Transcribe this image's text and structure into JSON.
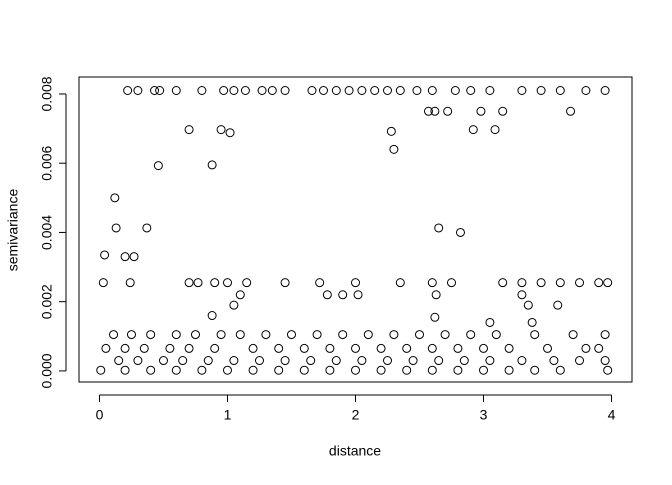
{
  "chart_data": {
    "type": "scatter",
    "x_label": "distance",
    "y_label": "semivariance",
    "x": [
      0.22,
      0.3,
      0.43,
      0.47,
      0.6,
      0.8,
      0.97,
      1.05,
      1.14,
      1.27,
      1.35,
      1.45,
      1.66,
      1.75,
      1.85,
      1.95,
      2.05,
      2.15,
      2.25,
      2.35,
      2.48,
      2.6,
      2.78,
      2.9,
      3.05,
      3.3,
      3.45,
      3.6,
      3.8,
      3.95,
      0.7,
      0.95,
      1.02,
      0.88,
      0.46,
      2.28,
      2.3,
      2.57,
      2.62,
      2.72,
      2.98,
      3.15,
      3.68,
      2.92,
      3.09,
      0.12,
      0.13,
      0.37,
      2.65,
      2.82,
      0.04,
      0.2,
      0.27,
      0.03,
      0.24,
      0.7,
      0.77,
      0.9,
      1.0,
      1.15,
      1.45,
      1.72,
      2.0,
      2.35,
      2.6,
      2.75,
      3.15,
      3.3,
      3.45,
      3.6,
      3.75,
      3.9,
      3.97,
      0.88,
      1.05,
      1.1,
      1.78,
      1.9,
      2.02,
      2.63,
      2.62,
      3.05,
      3.3,
      3.35,
      3.58,
      3.38,
      0.11,
      0.25,
      0.4,
      0.6,
      0.75,
      0.95,
      1.1,
      1.3,
      1.5,
      1.7,
      1.9,
      2.1,
      2.3,
      2.5,
      2.7,
      2.9,
      3.1,
      3.4,
      3.7,
      3.95,
      0.05,
      0.2,
      0.35,
      0.55,
      0.7,
      0.9,
      1.2,
      1.4,
      1.6,
      1.8,
      2.0,
      2.2,
      2.4,
      2.6,
      2.8,
      3.0,
      3.2,
      3.5,
      3.8,
      3.9,
      0.15,
      0.3,
      0.5,
      0.65,
      0.85,
      1.05,
      1.25,
      1.45,
      1.65,
      1.85,
      2.05,
      2.25,
      2.45,
      2.65,
      2.85,
      3.05,
      3.3,
      3.55,
      3.75,
      3.95,
      0.01,
      0.2,
      0.4,
      0.6,
      0.8,
      1.0,
      1.2,
      1.4,
      1.6,
      1.8,
      2.0,
      2.2,
      2.4,
      2.6,
      2.8,
      3.0,
      3.2,
      3.4,
      3.6,
      3.97
    ],
    "values": [
      0.0081,
      0.0081,
      0.0081,
      0.0081,
      0.0081,
      0.0081,
      0.0081,
      0.0081,
      0.0081,
      0.0081,
      0.0081,
      0.0081,
      0.0081,
      0.0081,
      0.0081,
      0.0081,
      0.0081,
      0.0081,
      0.0081,
      0.0081,
      0.0081,
      0.0081,
      0.0081,
      0.0081,
      0.0081,
      0.0081,
      0.0081,
      0.0081,
      0.0081,
      0.0081,
      0.00697,
      0.00697,
      0.00688,
      0.00595,
      0.00593,
      0.00692,
      0.0064,
      0.0075,
      0.0075,
      0.0075,
      0.0075,
      0.0075,
      0.0075,
      0.00697,
      0.00697,
      0.005,
      0.00413,
      0.00413,
      0.00413,
      0.004,
      0.00335,
      0.0033,
      0.0033,
      0.00255,
      0.00255,
      0.00255,
      0.00255,
      0.00255,
      0.00255,
      0.00255,
      0.00255,
      0.00255,
      0.00255,
      0.00255,
      0.00255,
      0.00255,
      0.00255,
      0.00255,
      0.00255,
      0.00255,
      0.00255,
      0.00255,
      0.00255,
      0.0016,
      0.0019,
      0.0022,
      0.0022,
      0.0022,
      0.0022,
      0.0022,
      0.00155,
      0.0014,
      0.0022,
      0.0019,
      0.0019,
      0.0014,
      0.00105,
      0.00105,
      0.00105,
      0.00105,
      0.00105,
      0.00105,
      0.00105,
      0.00105,
      0.00105,
      0.00105,
      0.00105,
      0.00105,
      0.00105,
      0.00105,
      0.00105,
      0.00105,
      0.00105,
      0.00105,
      0.00105,
      0.00105,
      0.00065,
      0.00065,
      0.00065,
      0.00065,
      0.00065,
      0.00065,
      0.00065,
      0.00065,
      0.00065,
      0.00065,
      0.00065,
      0.00065,
      0.00065,
      0.00065,
      0.00065,
      0.00065,
      0.00065,
      0.00065,
      0.00065,
      0.00065,
      0.0003,
      0.0003,
      0.0003,
      0.0003,
      0.0003,
      0.0003,
      0.0003,
      0.0003,
      0.0003,
      0.0003,
      0.0003,
      0.0003,
      0.0003,
      0.0003,
      0.0003,
      0.0003,
      0.0003,
      0.0003,
      0.0003,
      0.0003,
      2e-05,
      2e-05,
      2e-05,
      2e-05,
      2e-05,
      2e-05,
      2e-05,
      2e-05,
      2e-05,
      2e-05,
      2e-05,
      2e-05,
      2e-05,
      2e-05,
      2e-05,
      2e-05,
      2e-05,
      2e-05,
      2e-05,
      2e-05
    ],
    "color": "#000000",
    "xlim": [
      -0.16,
      4.16
    ],
    "xticks": [
      0,
      1,
      2,
      3,
      4
    ],
    "ylim": [
      -0.00032,
      0.00849
    ],
    "yticks": [
      {
        "value": 0,
        "label": "0.000"
      },
      {
        "value": 0.002,
        "label": "0.002"
      },
      {
        "value": 0.004,
        "label": "0.004"
      },
      {
        "value": 0.006,
        "label": "0.006"
      },
      {
        "value": 0.008,
        "label": "0.008"
      }
    ]
  }
}
